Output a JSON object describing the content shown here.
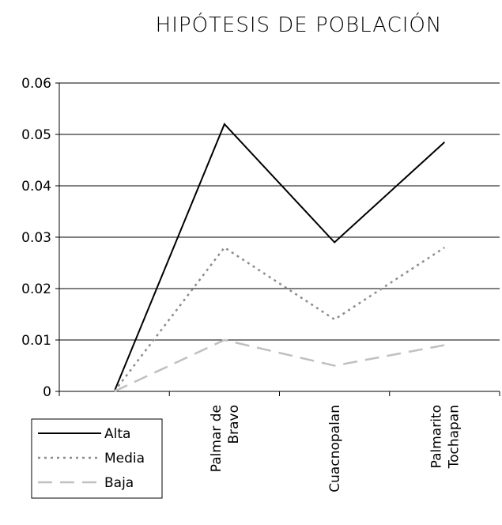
{
  "chart_data": {
    "type": "line",
    "title": "HIPÓTESIS DE POBLACIÓN",
    "xlabel": "",
    "ylabel": "",
    "categories": [
      "",
      "Palmar de Bravo",
      "Cuacnopalan",
      "Palmarito Tochapan"
    ],
    "category_lines": [
      [
        ""
      ],
      [
        "Palmar de",
        "Bravo"
      ],
      [
        "Cuacnopalan"
      ],
      [
        "Palmarito",
        "Tochapan"
      ]
    ],
    "y_ticks": [
      "0",
      "0.01",
      "0.02",
      "0.03",
      "0.04",
      "0.05",
      "0.06"
    ],
    "ylim": [
      0,
      0.06
    ],
    "grid": true,
    "legend_position": "bottom-left",
    "series": [
      {
        "name": "Alta",
        "values": [
          0,
          0.052,
          0.029,
          0.0485
        ],
        "color": "#000000",
        "dash": "solid"
      },
      {
        "name": "Media",
        "values": [
          0,
          0.028,
          0.014,
          0.028
        ],
        "color": "#8c8c8c",
        "dash": "dotted"
      },
      {
        "name": "Baja",
        "values": [
          0,
          0.01,
          0.005,
          0.009
        ],
        "color": "#c0c0c0",
        "dash": "dashed"
      }
    ]
  }
}
